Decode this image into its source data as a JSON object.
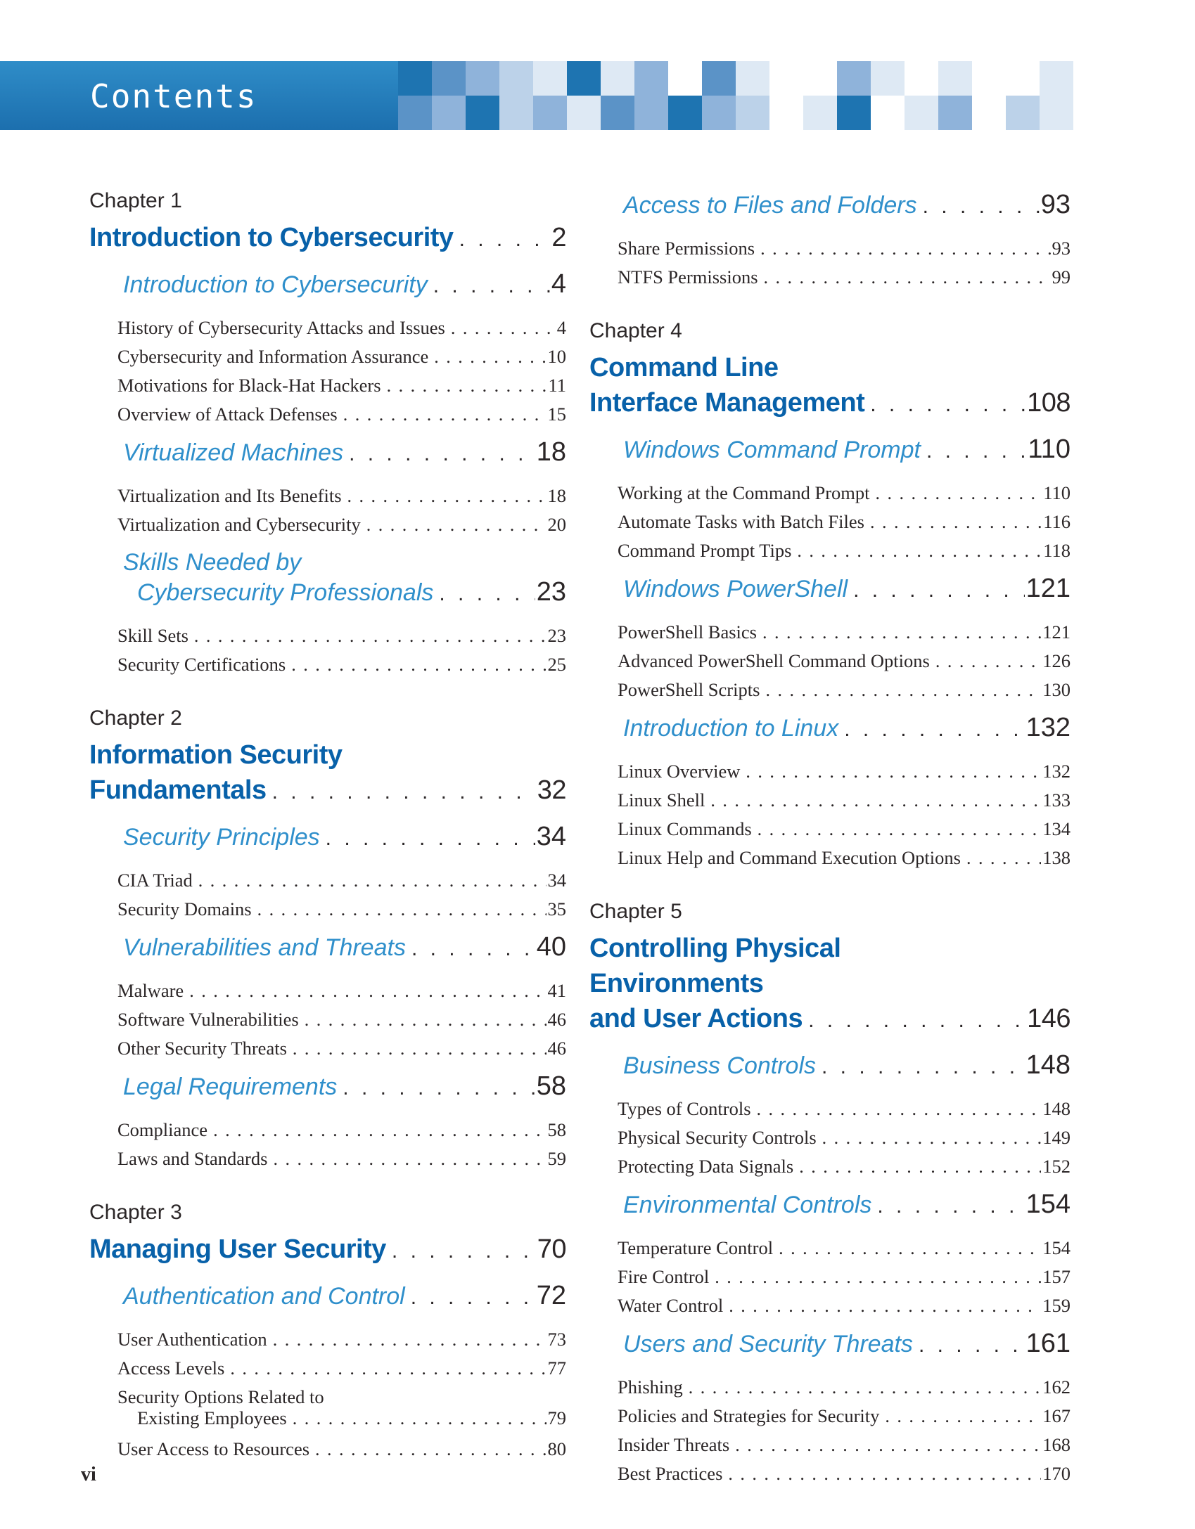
{
  "header": {
    "title": "Contents",
    "bar_color_top": "#2F8DC8",
    "bar_color_bottom": "#1C6FAE",
    "mosaic_palette": {
      "dark": "#1E74B1",
      "medium": "#5B93C7",
      "mlight": "#8FB3DA",
      "light": "#BCD2E9",
      "pale": "#DEE9F4",
      "white": "#FFFFFF"
    },
    "mosaic_rows": [
      [
        "dark",
        "medium",
        "mlight",
        "light",
        "pale",
        "dark",
        "pale",
        "mlight",
        "white",
        "medium",
        "pale",
        "white",
        "white",
        "mlight",
        "pale",
        "white",
        "pale",
        "white",
        "white",
        "pale"
      ],
      [
        "medium",
        "mlight",
        "dark",
        "light",
        "mlight",
        "pale",
        "medium",
        "mlight",
        "dark",
        "mlight",
        "light",
        "white",
        "pale",
        "dark",
        "white",
        "pale",
        "mlight",
        "white",
        "light",
        "pale"
      ]
    ]
  },
  "accent": {
    "chapter_title_color": "#0861A9",
    "section_color": "#2F8FCB",
    "text_color": "#2B2627"
  },
  "footer": {
    "page_label": "vi"
  },
  "toc": {
    "left": [
      {
        "t": "label",
        "text": "Chapter 1"
      },
      {
        "t": "title",
        "text": "Introduction to Cybersecurity",
        "page": "2"
      },
      {
        "t": "sec",
        "text": "Introduction to Cybersecurity",
        "page": "4"
      },
      {
        "t": "entry",
        "text": "History of Cybersecurity Attacks and Issues",
        "page": "4"
      },
      {
        "t": "entry",
        "text": "Cybersecurity and Information Assurance",
        "page": "10"
      },
      {
        "t": "entry",
        "text": "Motivations for Black-Hat Hackers",
        "page": "11"
      },
      {
        "t": "entry",
        "text": "Overview of Attack Defenses",
        "page": "15"
      },
      {
        "t": "sec",
        "text": "Virtualized Machines",
        "page": "18"
      },
      {
        "t": "entry",
        "text": "Virtualization and Its Benefits",
        "page": "18"
      },
      {
        "t": "entry",
        "text": "Virtualization and Cybersecurity",
        "page": "20"
      },
      {
        "t": "sec",
        "text": "Skills Needed by"
      },
      {
        "t": "sec",
        "text": "Cybersecurity Professionals",
        "page": "23",
        "wrap": true
      },
      {
        "t": "entry",
        "text": "Skill Sets",
        "page": "23"
      },
      {
        "t": "entry",
        "text": "Security Certifications",
        "page": "25"
      },
      {
        "t": "label",
        "text": "Chapter 2"
      },
      {
        "t": "title",
        "text": "Information Security"
      },
      {
        "t": "title",
        "text": "Fundamentals",
        "page": "32"
      },
      {
        "t": "sec",
        "text": "Security Principles",
        "page": "34"
      },
      {
        "t": "entry",
        "text": "CIA Triad",
        "page": "34"
      },
      {
        "t": "entry",
        "text": "Security Domains",
        "page": "35"
      },
      {
        "t": "sec",
        "text": "Vulnerabilities and Threats",
        "page": "40"
      },
      {
        "t": "entry",
        "text": "Malware",
        "page": "41"
      },
      {
        "t": "entry",
        "text": "Software Vulnerabilities",
        "page": "46"
      },
      {
        "t": "entry",
        "text": "Other Security Threats",
        "page": "46"
      },
      {
        "t": "sec",
        "text": "Legal Requirements",
        "page": "58"
      },
      {
        "t": "entry",
        "text": "Compliance",
        "page": "58"
      },
      {
        "t": "entry",
        "text": "Laws and Standards",
        "page": "59"
      },
      {
        "t": "label",
        "text": "Chapter 3"
      },
      {
        "t": "title",
        "text": "Managing User Security",
        "page": "70"
      },
      {
        "t": "sec",
        "text": "Authentication and Control",
        "page": "72"
      },
      {
        "t": "entry",
        "text": "User Authentication",
        "page": "73"
      },
      {
        "t": "entry",
        "text": "Access Levels",
        "page": "77"
      },
      {
        "t": "entry",
        "text": "Security Options Related to"
      },
      {
        "t": "entry",
        "text": "Existing Employees",
        "page": "79",
        "wrap": true
      },
      {
        "t": "entry",
        "text": "User Access to Resources",
        "page": "80"
      }
    ],
    "right": [
      {
        "t": "sec",
        "text": "Access to Files and Folders",
        "page": "93"
      },
      {
        "t": "entry",
        "text": "Share Permissions",
        "page": "93"
      },
      {
        "t": "entry",
        "text": "NTFS Permissions",
        "page": "99"
      },
      {
        "t": "label",
        "text": "Chapter 4"
      },
      {
        "t": "title",
        "text": "Command Line"
      },
      {
        "t": "title",
        "text": "Interface Management",
        "page": "108"
      },
      {
        "t": "sec",
        "text": "Windows Command Prompt",
        "page": "110"
      },
      {
        "t": "entry",
        "text": "Working at the Command Prompt",
        "page": "110"
      },
      {
        "t": "entry",
        "text": "Automate Tasks with Batch Files",
        "page": "116"
      },
      {
        "t": "entry",
        "text": "Command Prompt Tips",
        "page": "118"
      },
      {
        "t": "sec",
        "text": "Windows PowerShell",
        "page": "121"
      },
      {
        "t": "entry",
        "text": "PowerShell Basics",
        "page": "121"
      },
      {
        "t": "entry",
        "text": "Advanced PowerShell Command Options",
        "page": "126"
      },
      {
        "t": "entry",
        "text": "PowerShell Scripts",
        "page": "130"
      },
      {
        "t": "sec",
        "text": "Introduction to Linux",
        "page": "132"
      },
      {
        "t": "entry",
        "text": "Linux Overview",
        "page": "132"
      },
      {
        "t": "entry",
        "text": "Linux Shell",
        "page": "133"
      },
      {
        "t": "entry",
        "text": "Linux Commands",
        "page": "134"
      },
      {
        "t": "entry",
        "text": "Linux Help and Command Execution Options",
        "page": "138"
      },
      {
        "t": "label",
        "text": "Chapter 5"
      },
      {
        "t": "title",
        "text": "Controlling Physical"
      },
      {
        "t": "title",
        "text": "Environments"
      },
      {
        "t": "title",
        "text": "and User Actions",
        "page": "146"
      },
      {
        "t": "sec",
        "text": "Business Controls",
        "page": "148"
      },
      {
        "t": "entry",
        "text": "Types of Controls",
        "page": "148"
      },
      {
        "t": "entry",
        "text": "Physical Security Controls",
        "page": "149"
      },
      {
        "t": "entry",
        "text": "Protecting Data Signals",
        "page": "152"
      },
      {
        "t": "sec",
        "text": "Environmental Controls",
        "page": "154"
      },
      {
        "t": "entry",
        "text": "Temperature Control",
        "page": "154"
      },
      {
        "t": "entry",
        "text": "Fire Control",
        "page": "157"
      },
      {
        "t": "entry",
        "text": "Water Control",
        "page": "159"
      },
      {
        "t": "sec",
        "text": "Users and Security Threats",
        "page": "161"
      },
      {
        "t": "entry",
        "text": "Phishing",
        "page": "162"
      },
      {
        "t": "entry",
        "text": "Policies and Strategies for Security",
        "page": "167"
      },
      {
        "t": "entry",
        "text": "Insider Threats",
        "page": "168"
      },
      {
        "t": "entry",
        "text": "Best Practices",
        "page": "170"
      }
    ]
  }
}
